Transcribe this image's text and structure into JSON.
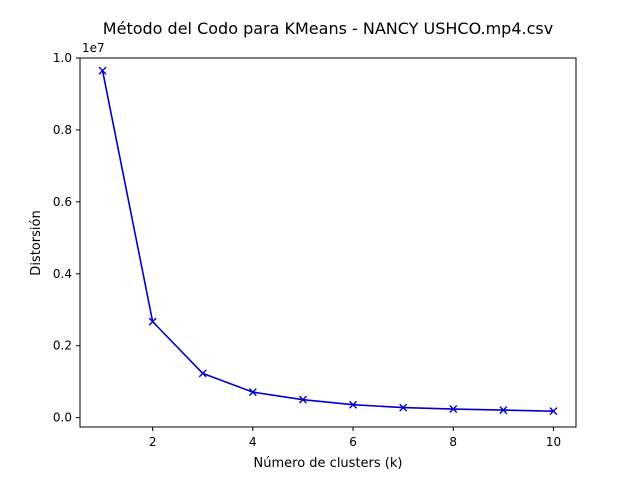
{
  "chart_data": {
    "type": "line",
    "title": "Método del Codo para KMeans - NANCY USHCO.mp4.csv",
    "xlabel": "Número de clusters (k)",
    "ylabel": "Distorsión",
    "y_offset_label": "1e7",
    "x": [
      1,
      2,
      3,
      4,
      5,
      6,
      7,
      8,
      9,
      10
    ],
    "series": [
      {
        "name": "Distorsión",
        "values": [
          0.965,
          0.267,
          0.123,
          0.071,
          0.05,
          0.036,
          0.028,
          0.024,
          0.021,
          0.018
        ],
        "color": "#0000cc",
        "marker": "x"
      }
    ],
    "xlim": [
      0.55,
      10.45
    ],
    "ylim": [
      -0.026,
      1.0
    ],
    "xticks": [
      2,
      4,
      6,
      8,
      10
    ],
    "xtick_labels": [
      "2",
      "4",
      "6",
      "8",
      "10"
    ],
    "yticks": [
      0.0,
      0.2,
      0.4,
      0.6,
      0.8,
      1.0
    ],
    "ytick_labels": [
      "0.0",
      "0.2",
      "0.4",
      "0.6",
      "0.8",
      "1.0"
    ],
    "grid": false
  }
}
